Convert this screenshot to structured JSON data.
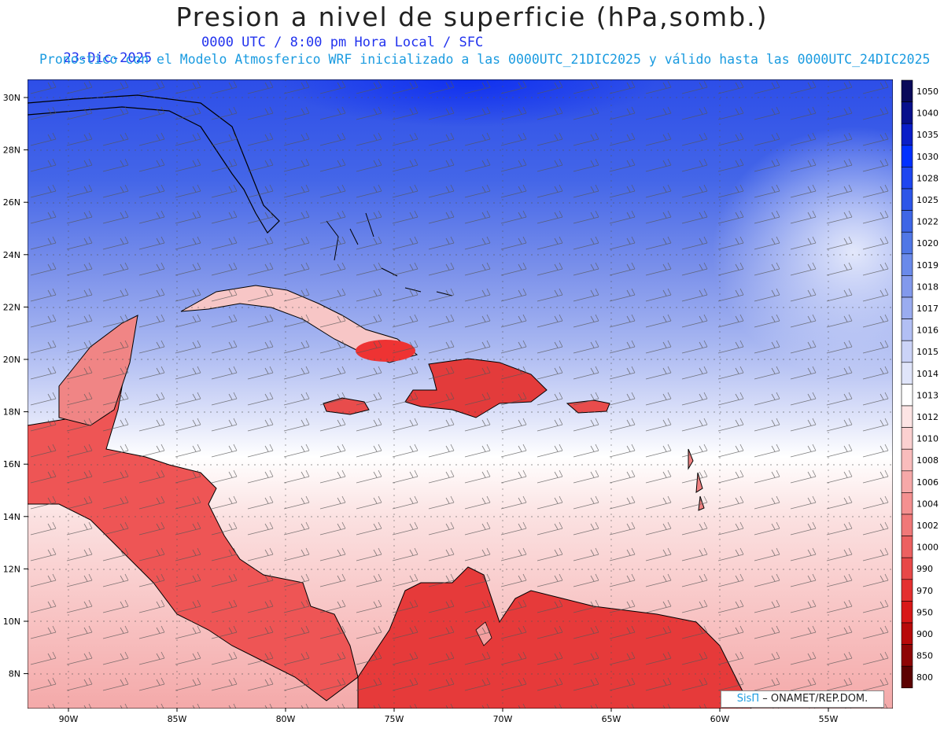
{
  "header": {
    "title": "Presion a nivel de superficie (hPa,somb.)",
    "date": "23-Dic-2025",
    "time_info": "0000 UTC / 8:00 pm Hora Local / SFC",
    "description": "Pronostico con el Modelo Atmosferico WRF inicializado a las 0000UTC_21DIC2025 y válido hasta las  0000UTC_24DIC2025"
  },
  "map": {
    "lat_labels": [
      "30N",
      "28N",
      "26N",
      "24N",
      "22N",
      "20N",
      "18N",
      "16N",
      "14N",
      "12N",
      "10N",
      "8N"
    ],
    "lon_labels": [
      "90W",
      "85W",
      "80W",
      "75W",
      "70W",
      "65W",
      "60W",
      "55W"
    ]
  },
  "colorbar": {
    "levels": [
      "1050",
      "1040",
      "1035",
      "1030",
      "1028",
      "1025",
      "1022",
      "1020",
      "1019",
      "1018",
      "1017",
      "1016",
      "1015",
      "1014",
      "1013",
      "1012",
      "1010",
      "1008",
      "1006",
      "1004",
      "1002",
      "1000",
      "990",
      "970",
      "950",
      "900",
      "850",
      "800"
    ],
    "colors": [
      "#0a0a5a",
      "#08108c",
      "#0a1ec8",
      "#0030ff",
      "#1e46f0",
      "#2d55e8",
      "#3e66e6",
      "#5077e6",
      "#6a8aea",
      "#8299ec",
      "#9aacf0",
      "#b2bff4",
      "#cbd3f7",
      "#e0e5fa",
      "#ffffff",
      "#fde4e4",
      "#fbd0d0",
      "#f9bcbc",
      "#f6a8a8",
      "#f49090",
      "#f07878",
      "#ec6060",
      "#e84848",
      "#e43030",
      "#d81818",
      "#b80a0a",
      "#8e0505",
      "#5c0202"
    ]
  },
  "credit": {
    "brand": "SisΠ",
    "text": "– ONAMET/REP.DOM."
  },
  "colors": {
    "low_pressure": "#e43030",
    "high_pressure": "#2d55e8",
    "neutral": "#ffffff"
  }
}
